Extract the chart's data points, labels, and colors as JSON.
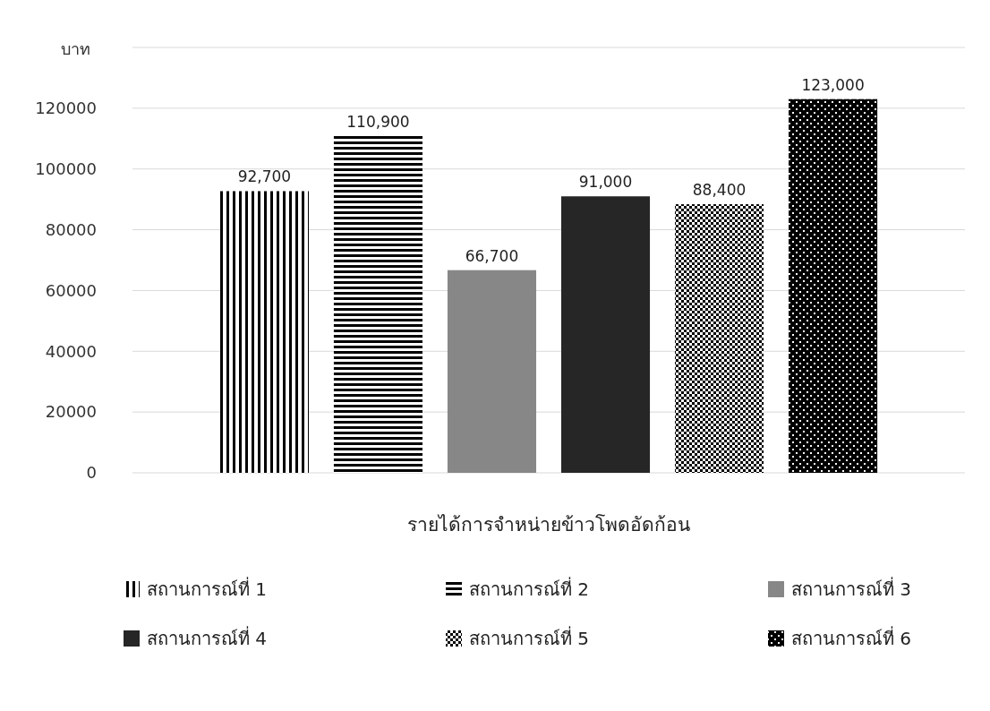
{
  "chart_data": {
    "type": "bar",
    "ylabel": "บาท",
    "categories": [
      "รายได้การจำหน่ายข้าวโพดอัดก้อน"
    ],
    "series": [
      {
        "name": "สถานการณ์ที่ 1",
        "color": "#000000",
        "values": [
          92700
        ],
        "value_labels": [
          "92,700"
        ]
      },
      {
        "name": "สถานการณ์ที่ 2",
        "color": "#000000",
        "values": [
          110900
        ],
        "value_labels": [
          "110,900"
        ]
      },
      {
        "name": "สถานการณ์ที่ 3",
        "color": "#878787",
        "values": [
          66700
        ],
        "value_labels": [
          "66,700"
        ]
      },
      {
        "name": "สถานการณ์ที่ 4",
        "color": "#262626",
        "values": [
          91000
        ],
        "value_labels": [
          "91,000"
        ]
      },
      {
        "name": "สถานการณ์ที่ 5",
        "color": "#000000",
        "values": [
          88400
        ],
        "value_labels": [
          "88,400"
        ]
      },
      {
        "name": "สถานการณ์ที่ 6",
        "color": "#000000",
        "values": [
          123000
        ],
        "value_labels": [
          "123,000"
        ]
      }
    ],
    "ylim": [
      0,
      140000
    ],
    "yticks": [
      0,
      20000,
      40000,
      60000,
      80000,
      100000,
      120000,
      {
        "value": 140000,
        "label": null
      }
    ],
    "grid": "y",
    "legend": "bottom"
  }
}
